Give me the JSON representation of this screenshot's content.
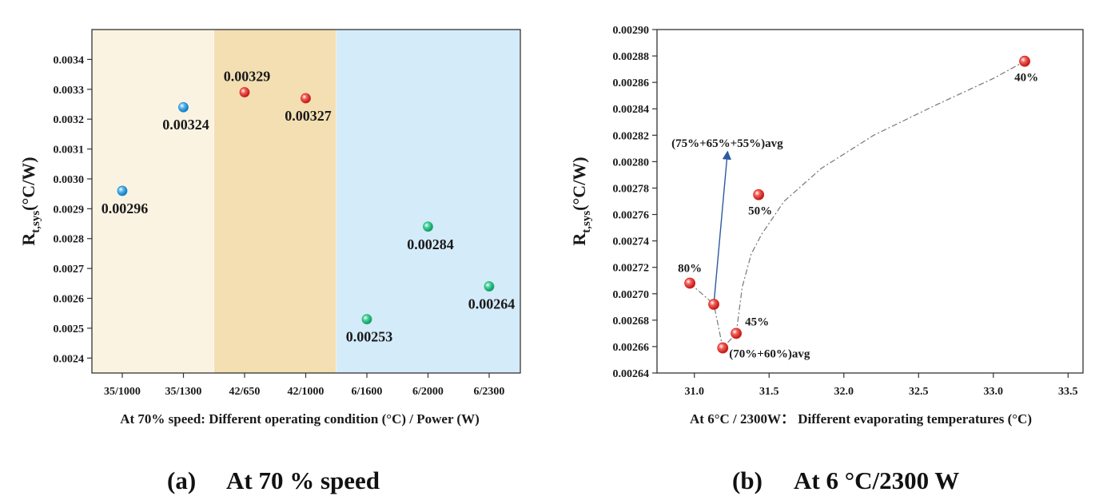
{
  "chart_data": [
    {
      "type": "scatter",
      "title": "",
      "caption": {
        "letter": "(a)",
        "text": "At 70 % speed"
      },
      "xlabel": "At 70% speed: Different operating condition (°C) / Power (W)",
      "ylabel_main": "R",
      "ylabel_sub": "t,sys",
      "ylabel_unit": "(°C/W)",
      "categories": [
        "35/1000",
        "35/1300",
        "42/650",
        "42/1000",
        "6/1600",
        "6/2000",
        "6/2300"
      ],
      "ylim": [
        0.00235,
        0.0035
      ],
      "yticks": [
        "0.0024",
        "0.0025",
        "0.0026",
        "0.0027",
        "0.0028",
        "0.0029",
        "0.0030",
        "0.0031",
        "0.0032",
        "0.0033",
        "0.0034"
      ],
      "ytick_values": [
        0.0024,
        0.0025,
        0.0026,
        0.0027,
        0.0028,
        0.0029,
        0.003,
        0.0031,
        0.0032,
        0.0033,
        0.0034
      ],
      "bands": [
        {
          "from": "35/1000",
          "to": "35/1300",
          "color": "#faf3e2"
        },
        {
          "from": "42/650",
          "to": "42/1000",
          "color": "#f4dfb3"
        },
        {
          "from": "6/1600",
          "to": "6/2300",
          "color": "#d4ebfa"
        }
      ],
      "points": [
        {
          "category": "35/1000",
          "value": 0.00296,
          "label": "0.00296",
          "color": "#1a8fd8",
          "label_pos": "below"
        },
        {
          "category": "35/1300",
          "value": 0.00324,
          "label": "0.00324",
          "color": "#1a8fd8",
          "label_pos": "below"
        },
        {
          "category": "42/650",
          "value": 0.00329,
          "label": "0.00329",
          "color": "#e0201b",
          "label_pos": "above"
        },
        {
          "category": "42/1000",
          "value": 0.00327,
          "label": "0.00327",
          "color": "#e0201b",
          "label_pos": "below"
        },
        {
          "category": "6/1600",
          "value": 0.00253,
          "label": "0.00253",
          "color": "#1cb77b",
          "label_pos": "below"
        },
        {
          "category": "6/2000",
          "value": 0.00284,
          "label": "0.00284",
          "color": "#1cb77b",
          "label_pos": "below"
        },
        {
          "category": "6/2300",
          "value": 0.00264,
          "label": "0.00264",
          "color": "#1cb77b",
          "label_pos": "below"
        }
      ]
    },
    {
      "type": "scatter",
      "title": "",
      "caption": {
        "letter": "(b)",
        "text": "At 6 °C/2300 W"
      },
      "xlabel": "At 6°C / 2300W： Different evaporating temperatures (°C)",
      "ylabel_main": "R",
      "ylabel_sub": "t,sys",
      "ylabel_unit": "(°C/W)",
      "xlim": [
        30.75,
        33.6
      ],
      "ylim": [
        0.00264,
        0.0029
      ],
      "xticks": [
        "31.0",
        "31.5",
        "32.0",
        "32.5",
        "33.0",
        "33.5"
      ],
      "xtick_values": [
        31.0,
        31.5,
        32.0,
        32.5,
        33.0,
        33.5
      ],
      "yticks": [
        "0.00264",
        "0.00266",
        "0.00268",
        "0.00270",
        "0.00272",
        "0.00274",
        "0.00276",
        "0.00278",
        "0.00280",
        "0.00282",
        "0.00284",
        "0.00286",
        "0.00288",
        "0.00290"
      ],
      "ytick_values": [
        0.00264,
        0.00266,
        0.00268,
        0.0027,
        0.00272,
        0.00274,
        0.00276,
        0.00278,
        0.0028,
        0.00282,
        0.00284,
        0.00286,
        0.00288,
        0.0029
      ],
      "point_color": "#e0201b",
      "points": [
        {
          "x": 30.97,
          "y": 0.002708,
          "label": "80%",
          "label_pos": "above"
        },
        {
          "x": 31.13,
          "y": 0.002692,
          "label": "",
          "label_pos": "none"
        },
        {
          "x": 31.19,
          "y": 0.002659,
          "label": "(70%+60%)avg",
          "label_pos": "right"
        },
        {
          "x": 31.28,
          "y": 0.00267,
          "label": "45%",
          "label_pos": "above"
        },
        {
          "x": 31.43,
          "y": 0.002775,
          "label": "50%",
          "label_pos": "below"
        },
        {
          "x": 33.21,
          "y": 0.002876,
          "label": "40%",
          "label_pos": "below"
        }
      ],
      "trend_line": [
        [
          30.97,
          0.002708
        ],
        [
          31.13,
          0.002692
        ],
        [
          31.19,
          0.002659
        ],
        [
          31.28,
          0.00267
        ],
        [
          31.32,
          0.002705
        ],
        [
          31.38,
          0.00273
        ],
        [
          31.45,
          0.002745
        ],
        [
          31.6,
          0.00277
        ],
        [
          31.85,
          0.002795
        ],
        [
          32.2,
          0.00282
        ],
        [
          32.6,
          0.002842
        ],
        [
          33.0,
          0.002863
        ],
        [
          33.21,
          0.002876
        ]
      ],
      "annotation": {
        "text": "(75%+65%+55%)avg",
        "arrow_from": [
          31.13,
          0.002692
        ],
        "arrow_to": [
          31.22,
          0.002805
        ],
        "color": "#2d5aa0"
      }
    }
  ]
}
